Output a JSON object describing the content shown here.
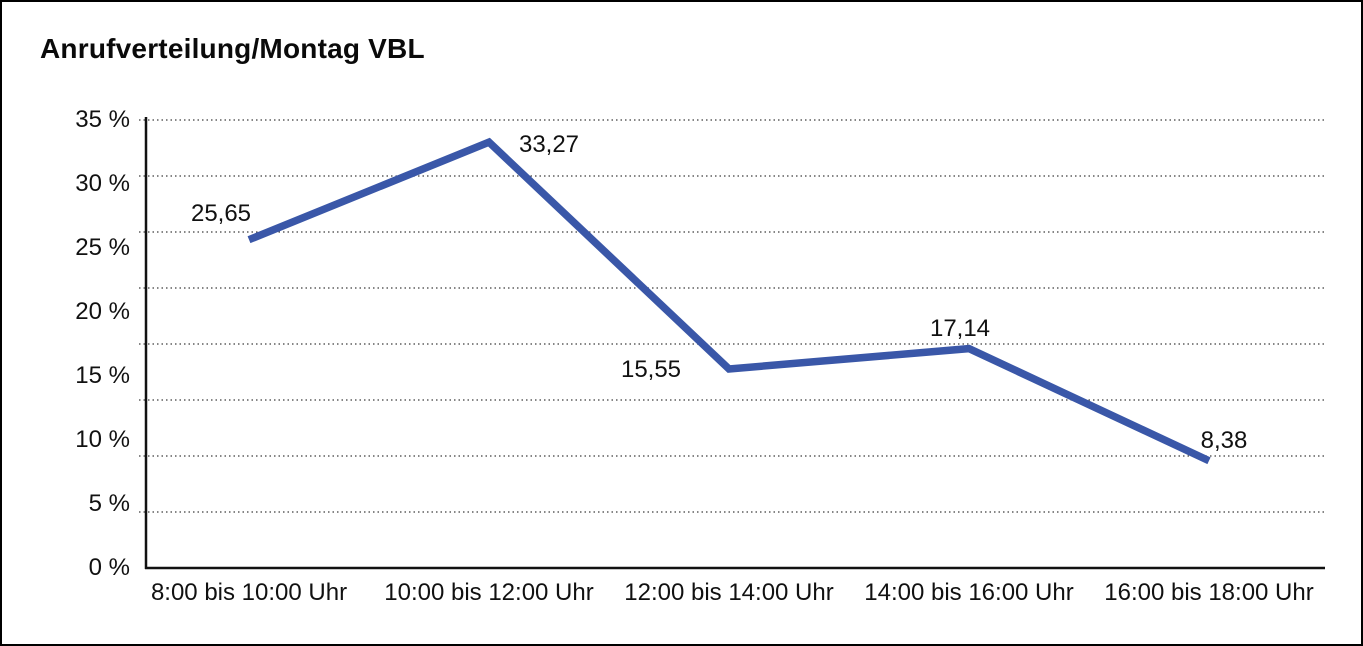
{
  "title": "Anrufverteilung/Montag VBL",
  "chart_data": {
    "type": "line",
    "title": "Anrufverteilung/Montag VBL",
    "categories": [
      "8:00 bis 10:00 Uhr",
      "10:00 bis 12:00 Uhr",
      "12:00 bis 14:00 Uhr",
      "14:00 bis 16:00 Uhr",
      "16:00 bis 18:00 Uhr"
    ],
    "values": [
      25.65,
      33.27,
      15.55,
      17.14,
      8.38
    ],
    "value_labels": [
      "25,65",
      "33,27",
      "15,55",
      "17,14",
      "8,38"
    ],
    "ytick_labels": [
      "0 %",
      "5 %",
      "10 %",
      "15 %",
      "20 %",
      "25 %",
      "30 %",
      "35 %"
    ],
    "ylim": [
      0,
      35
    ],
    "xlabel": "",
    "ylabel": "",
    "legend": "none",
    "grid": "horizontal-dotted",
    "series_name": "Anrufverteilung Montag VBL",
    "line_color": "#3A57A8",
    "text_color": "#111111",
    "grid_color": "#3d3d3d",
    "axis_color": "#111111",
    "background_color": "#ffffff",
    "border_color": "#000000"
  }
}
